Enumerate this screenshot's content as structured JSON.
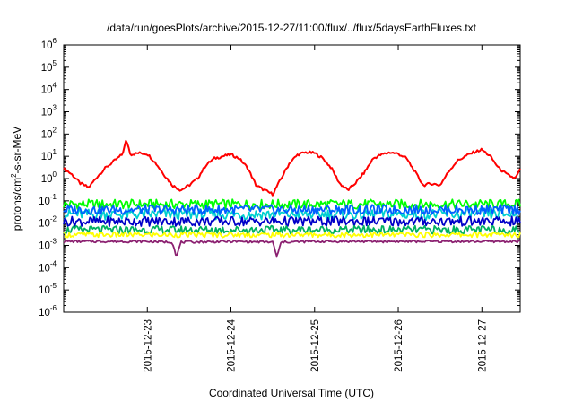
{
  "chart_data": {
    "type": "line",
    "title": "/data/run/goesPlots/archive/2015-12-27/11:00/flux/../flux/5daysEarthFluxes.txt",
    "xlabel": "Coordinated Universal Time (UTC)",
    "ylabel_parts": [
      "protons/cm",
      "2",
      "-s-sr-MeV"
    ],
    "y_scale": "log",
    "ylim": [
      1e-06,
      1000000.0
    ],
    "y_ticks": [
      {
        "base": "10",
        "exp": "-6",
        "value": 1e-06
      },
      {
        "base": "10",
        "exp": "-5",
        "value": 1e-05
      },
      {
        "base": "10",
        "exp": "-4",
        "value": 0.0001
      },
      {
        "base": "10",
        "exp": "-3",
        "value": 0.001
      },
      {
        "base": "10",
        "exp": "-2",
        "value": 0.01
      },
      {
        "base": "10",
        "exp": "-1",
        "value": 0.1
      },
      {
        "base": "10",
        "exp": "0",
        "value": 1
      },
      {
        "base": "10",
        "exp": "1",
        "value": 10
      },
      {
        "base": "10",
        "exp": "2",
        "value": 100
      },
      {
        "base": "10",
        "exp": "3",
        "value": 1000
      },
      {
        "base": "10",
        "exp": "4",
        "value": 10000
      },
      {
        "base": "10",
        "exp": "5",
        "value": 100000
      },
      {
        "base": "10",
        "exp": "6",
        "value": 1000000
      }
    ],
    "x_range": [
      "2015-12-22 00:00",
      "2015-12-27 11:00"
    ],
    "x_ticks": [
      "2015-12-23",
      "2015-12-24",
      "2015-12-25",
      "2015-12-26",
      "2015-12-27"
    ],
    "grid": false,
    "legend": "none",
    "series": [
      {
        "color": "#ff0000",
        "x_days": [
          0.0,
          0.1,
          0.2,
          0.3,
          0.4,
          0.5,
          0.6,
          0.7,
          0.75,
          0.8,
          0.9,
          1.0,
          1.1,
          1.2,
          1.3,
          1.4,
          1.5,
          1.6,
          1.7,
          1.8,
          1.9,
          2.0,
          2.1,
          2.2,
          2.3,
          2.4,
          2.5,
          2.6,
          2.7,
          2.8,
          2.9,
          3.0,
          3.1,
          3.2,
          3.3,
          3.4,
          3.5,
          3.6,
          3.7,
          3.8,
          3.9,
          4.0,
          4.1,
          4.2,
          4.3,
          4.4,
          4.5,
          4.6,
          4.7,
          4.8,
          4.9,
          5.0,
          5.1,
          5.2,
          5.3,
          5.4,
          5.458
        ],
        "values": [
          3,
          1.5,
          0.6,
          0.4,
          1.2,
          3,
          6,
          12,
          55,
          12,
          14,
          13,
          5,
          1.5,
          0.5,
          0.3,
          0.5,
          1,
          4,
          8,
          10,
          12,
          8,
          3,
          0.5,
          0.3,
          0.2,
          1,
          5,
          12,
          15,
          14,
          8,
          3,
          0.6,
          0.3,
          0.7,
          2,
          8,
          12,
          15,
          13,
          8,
          2,
          0.5,
          0.6,
          0.5,
          2,
          6,
          10,
          15,
          20,
          10,
          3,
          1.5,
          1,
          2.5
        ]
      },
      {
        "color": "#00ff00",
        "x_days": [
          0,
          5.458
        ],
        "values": [
          0.07,
          0.07
        ]
      },
      {
        "color": "#00d0d0",
        "x_days": [
          0,
          5.458
        ],
        "values": [
          0.025,
          0.025
        ]
      },
      {
        "color": "#0060ff",
        "x_days": [
          0,
          5.458
        ],
        "values": [
          0.04,
          0.04
        ]
      },
      {
        "color": "#0000c8",
        "x_days": [
          0,
          5.458
        ],
        "values": [
          0.012,
          0.012
        ]
      },
      {
        "color": "#00b060",
        "x_days": [
          0,
          5.458
        ],
        "values": [
          0.005,
          0.005
        ]
      },
      {
        "color": "#ffff00",
        "x_days": [
          0,
          5.458
        ],
        "values": [
          0.003,
          0.003
        ]
      },
      {
        "color": "#8b2070",
        "x_days": [
          0.0,
          0.5,
          1.0,
          1.3,
          1.35,
          1.4,
          2.0,
          2.5,
          2.55,
          2.6,
          3.0,
          4.0,
          5.0,
          5.458
        ],
        "values": [
          0.0015,
          0.0015,
          0.0015,
          0.0014,
          0.0003,
          0.0014,
          0.0015,
          0.0014,
          0.0003,
          0.0014,
          0.0015,
          0.0015,
          0.0015,
          0.0015
        ]
      }
    ]
  }
}
